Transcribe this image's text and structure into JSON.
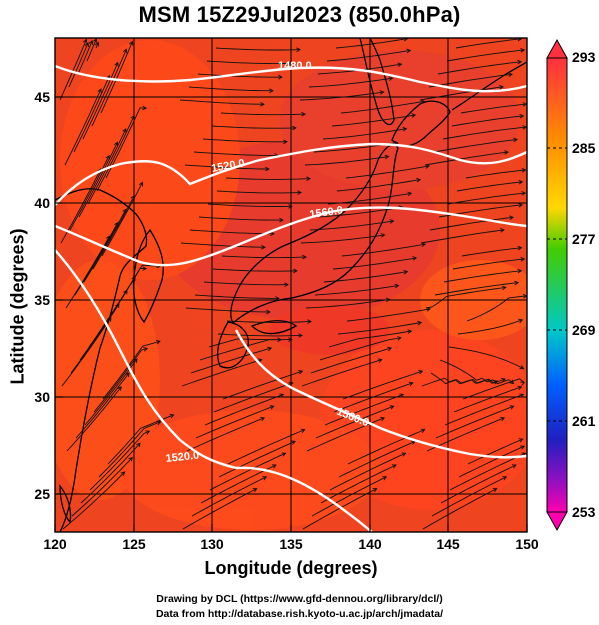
{
  "title": "MSM 15Z29Jul2023 (850.0hPa)",
  "axes": {
    "xlabel": "Longitude (degrees)",
    "ylabel": "Latitude  (degrees)",
    "xticks": [
      "120",
      "125",
      "130",
      "135",
      "140",
      "145",
      "150"
    ],
    "yticks": [
      "25",
      "30",
      "35",
      "40",
      "45"
    ]
  },
  "colorbar": {
    "ticks": [
      "293",
      "285",
      "277",
      "269",
      "261",
      "253"
    ],
    "colors": [
      "#ff3040",
      "#ff8c00",
      "#ffd800",
      "#22c000",
      "#00b8e0",
      "#0050e0",
      "#6000c0",
      "#ff00b0"
    ]
  },
  "contour_labels": [
    "1480.0",
    "1520.0",
    "1560.0",
    "1560.0",
    "1520.0"
  ],
  "credits": [
    "Drawing by DCL (https://www.gfd-dennou.org/library/dcl/)",
    "Data from http://database.rish.kyoto-u.ac.jp/arch/jmadata/"
  ],
  "map_extent": {
    "lon": [
      120,
      150
    ],
    "lat": [
      22.4,
      48
    ]
  }
}
